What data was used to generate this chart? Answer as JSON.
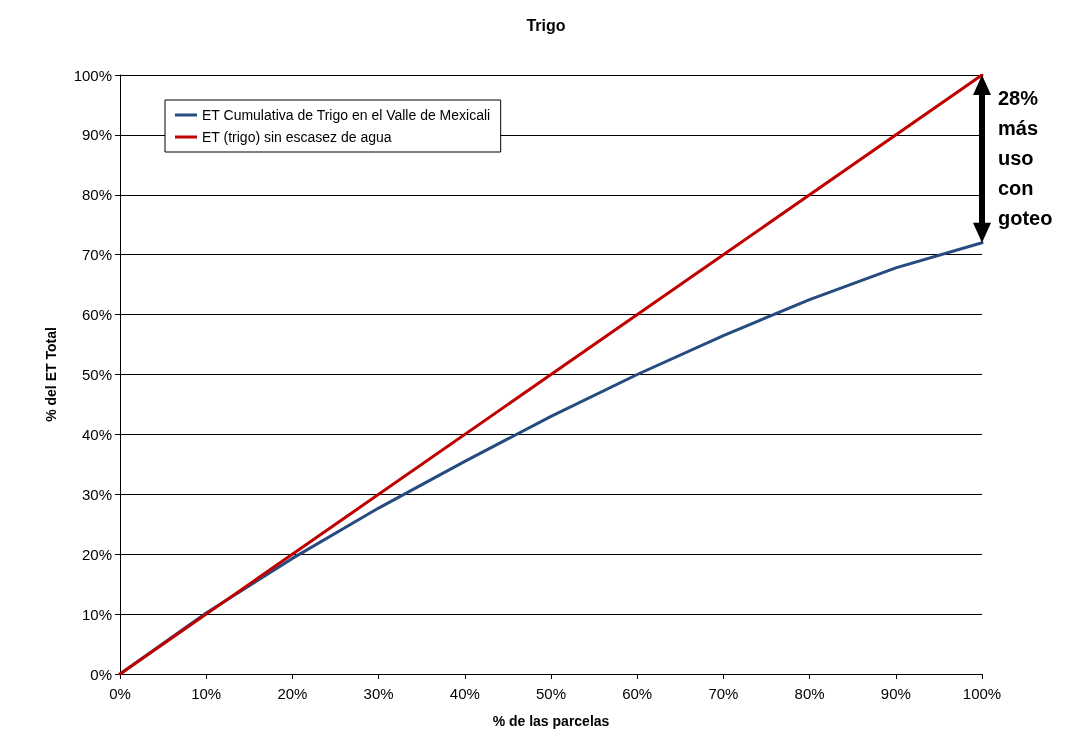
{
  "chart_data": {
    "type": "line",
    "title": "Trigo",
    "xlabel": "% de las parcelas",
    "ylabel": "% del ET Total",
    "xlim": [
      0,
      100
    ],
    "ylim": [
      0,
      100
    ],
    "xticks": [
      {
        "value": 0,
        "label": "0%"
      },
      {
        "value": 10,
        "label": "10%"
      },
      {
        "value": 20,
        "label": "20%"
      },
      {
        "value": 30,
        "label": "30%"
      },
      {
        "value": 40,
        "label": "40%"
      },
      {
        "value": 50,
        "label": "50%"
      },
      {
        "value": 60,
        "label": "60%"
      },
      {
        "value": 70,
        "label": "70%"
      },
      {
        "value": 80,
        "label": "80%"
      },
      {
        "value": 90,
        "label": "90%"
      },
      {
        "value": 100,
        "label": "100%"
      }
    ],
    "yticks": [
      {
        "value": 0,
        "label": "0%"
      },
      {
        "value": 10,
        "label": "10%"
      },
      {
        "value": 20,
        "label": "20%"
      },
      {
        "value": 30,
        "label": "30%"
      },
      {
        "value": 40,
        "label": "40%"
      },
      {
        "value": 50,
        "label": "50%"
      },
      {
        "value": 60,
        "label": "60%"
      },
      {
        "value": 70,
        "label": "70%"
      },
      {
        "value": 80,
        "label": "80%"
      },
      {
        "value": 90,
        "label": "90%"
      },
      {
        "value": 100,
        "label": "100%"
      }
    ],
    "series": [
      {
        "name": "ET Cumulativa de Trigo en el Valle de Mexicali",
        "color": "#264b7e",
        "x": [
          0,
          10,
          20,
          30,
          40,
          50,
          60,
          70,
          80,
          90,
          100
        ],
        "values": [
          0,
          10.2,
          19.3,
          27.7,
          35.5,
          43,
          50,
          56.5,
          62.5,
          67.8,
          72
        ]
      },
      {
        "name": "ET (trigo) sin escasez de agua",
        "color": "#c00000",
        "x": [
          0,
          100
        ],
        "values": [
          0,
          100
        ]
      }
    ],
    "annotations": [
      "28% más uso con goteo"
    ],
    "grid": "y",
    "legend": "top left",
    "marker": "none",
    "line_style": "solid"
  }
}
